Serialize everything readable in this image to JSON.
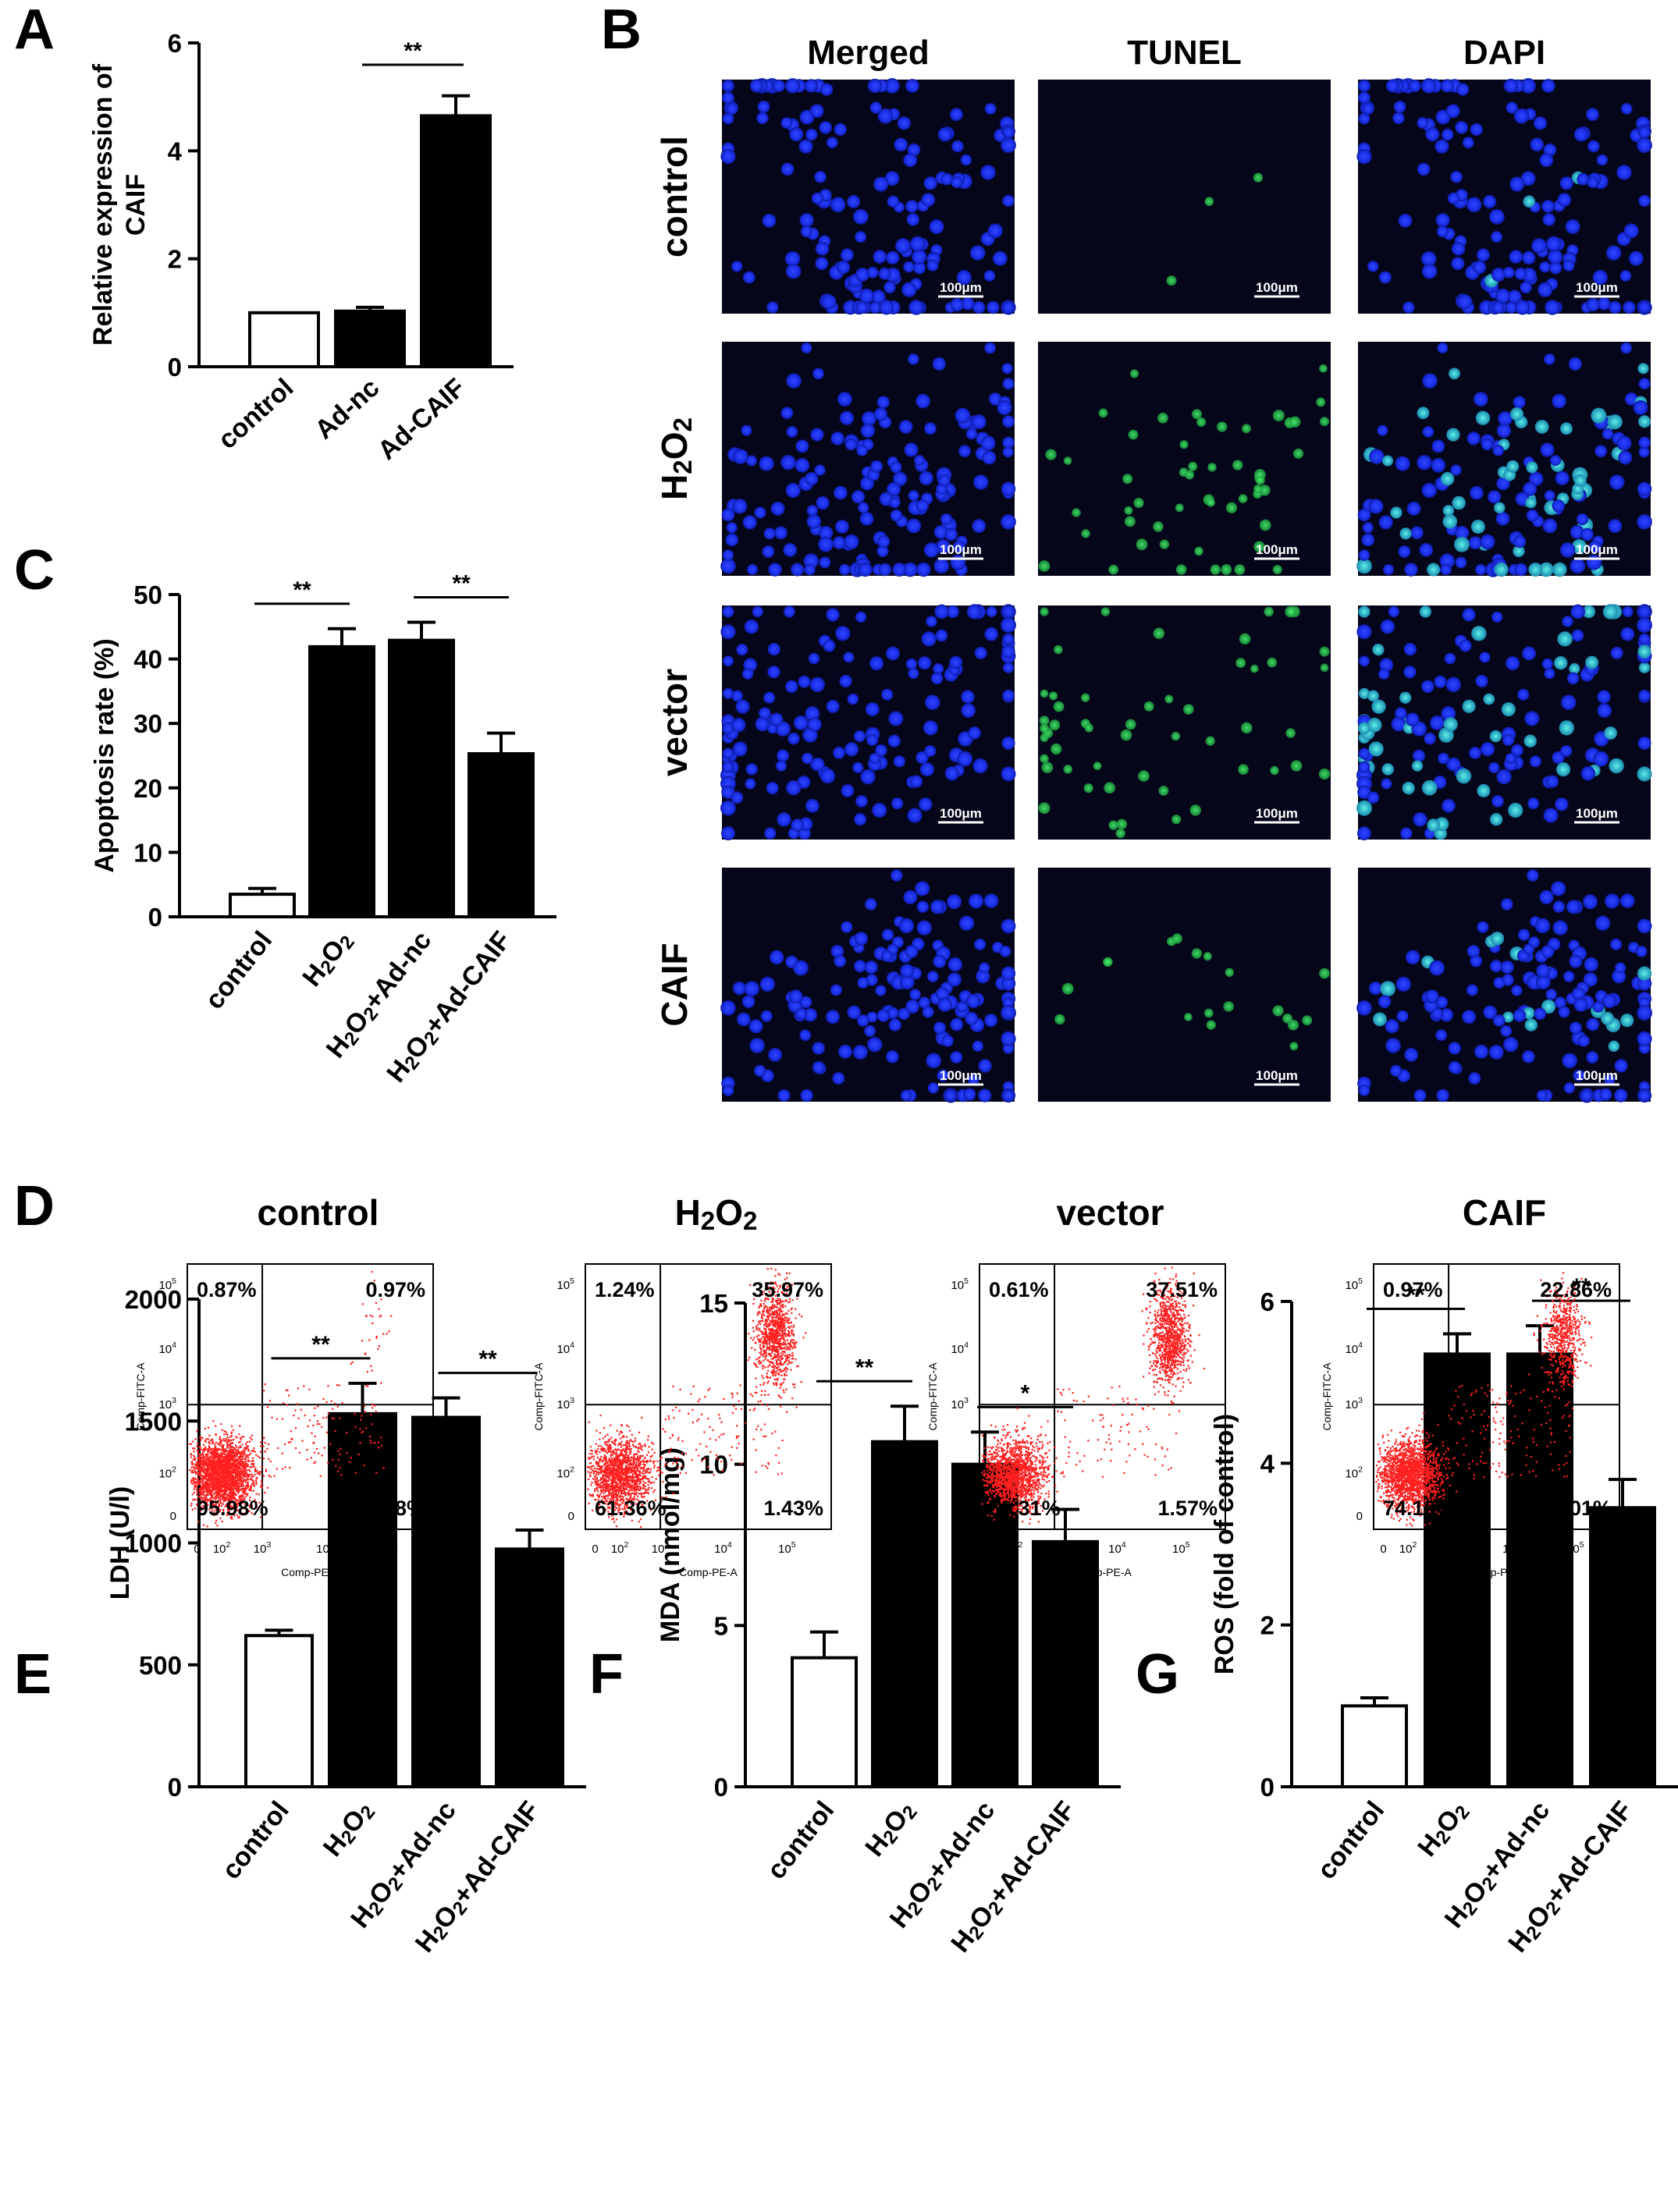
{
  "panel_labels": [
    "A",
    "B",
    "C",
    "D",
    "E",
    "F",
    "G"
  ],
  "colors": {
    "bar_fill": "#000000",
    "bar_control_fill": "#ffffff",
    "micrograph_bg": "#05061a",
    "dapi_blue": "#1a2ee6",
    "tunel_green": "#2ecc55",
    "flow_dots": "#ff2020"
  },
  "panel_b": {
    "column_titles": [
      "Merged",
      "TUNEL",
      "DAPI"
    ],
    "row_labels": [
      "control",
      "H2O2",
      "vector",
      "CAIF"
    ],
    "scale_label": "100μm",
    "tunel_positive_level": [
      0.02,
      0.35,
      0.37,
      0.12
    ]
  },
  "panel_d": {
    "titles": [
      "control",
      "H2O2",
      "vector",
      "CAIF"
    ],
    "x_axis_label": "Comp-PE-A",
    "y_axis_label": "Comp-FITC-A",
    "x_ticks": [
      "0",
      "10^2",
      "10^3",
      "10^4",
      "10^5"
    ],
    "y_ticks": [
      "0",
      "10^2",
      "10^3",
      "10^4",
      "10^5"
    ],
    "quadrants": [
      {
        "ul": "0.87%",
        "ur": "0.97%",
        "ll": "95.98%",
        "lr": "2.18%"
      },
      {
        "ul": "1.24%",
        "ur": "35.97%",
        "ll": "61.36%",
        "lr": "1.43%"
      },
      {
        "ul": "0.61%",
        "ur": "37.51%",
        "ll": "60.31%",
        "lr": "1.57%"
      },
      {
        "ul": "0.97%",
        "ur": "22.86%",
        "ll": "74.16%",
        "lr": "2.01%"
      }
    ]
  },
  "chart_data": [
    {
      "panel": "A",
      "type": "bar",
      "ylabel": "Relative expression of CAIF",
      "categories": [
        "control",
        "Ad-nc",
        "Ad-CAIF"
      ],
      "values": [
        1.0,
        1.03,
        4.65
      ],
      "errors": [
        0.0,
        0.07,
        0.37
      ],
      "ylim": [
        0,
        6
      ],
      "yticks": [
        0,
        2,
        4,
        6
      ],
      "significance": [
        {
          "from": 1,
          "to": 2,
          "label": "**"
        }
      ]
    },
    {
      "panel": "C",
      "type": "bar",
      "ylabel": "Apoptosis rate (%)",
      "categories": [
        "control",
        "H2O2",
        "H2O2+Ad-nc",
        "H2O2+Ad-CAIF"
      ],
      "values": [
        3.5,
        41.9,
        42.9,
        25.3
      ],
      "errors": [
        0.9,
        2.8,
        2.8,
        3.2
      ],
      "ylim": [
        0,
        50
      ],
      "yticks": [
        0,
        10,
        20,
        30,
        40,
        50
      ],
      "significance": [
        {
          "from": 0,
          "to": 1,
          "label": "**"
        },
        {
          "from": 2,
          "to": 3,
          "label": "**"
        }
      ]
    },
    {
      "panel": "E",
      "type": "bar",
      "ylabel": "LDH (U/l)",
      "categories": [
        "control",
        "H2O2",
        "H2O2+Ad-nc",
        "H2O2+Ad-CAIF"
      ],
      "values": [
        620,
        1530,
        1515,
        975
      ],
      "errors": [
        22,
        125,
        80,
        78
      ],
      "ylim": [
        0,
        2000
      ],
      "yticks": [
        0,
        500,
        1000,
        1500,
        2000
      ],
      "significance": [
        {
          "from": 0,
          "to": 1,
          "label": "**"
        },
        {
          "from": 2,
          "to": 3,
          "label": "**"
        }
      ]
    },
    {
      "panel": "F",
      "type": "bar",
      "ylabel": "MDA (nmol/mg)",
      "categories": [
        "control",
        "H2O2",
        "H2O2+Ad-nc",
        "H2O2+Ad-CAIF"
      ],
      "values": [
        4.0,
        10.7,
        10.0,
        7.6
      ],
      "errors": [
        0.8,
        1.1,
        1.0,
        1.0
      ],
      "ylim": [
        0,
        15
      ],
      "yticks": [
        0,
        5,
        10,
        15
      ],
      "significance": [
        {
          "from": 0,
          "to": 1,
          "label": "**"
        },
        {
          "from": 2,
          "to": 3,
          "label": "*"
        }
      ]
    },
    {
      "panel": "G",
      "type": "bar",
      "ylabel": "ROS (fold of control)",
      "categories": [
        "control",
        "H2O2",
        "H2O2+Ad-nc",
        "H2O2+Ad-CAIF"
      ],
      "values": [
        1.0,
        5.35,
        5.35,
        3.45
      ],
      "errors": [
        0.1,
        0.25,
        0.35,
        0.35
      ],
      "ylim": [
        0,
        6
      ],
      "yticks": [
        0,
        2,
        4,
        6
      ],
      "significance": [
        {
          "from": 0,
          "to": 1,
          "label": "**"
        },
        {
          "from": 2,
          "to": 3,
          "label": "**"
        }
      ]
    }
  ]
}
